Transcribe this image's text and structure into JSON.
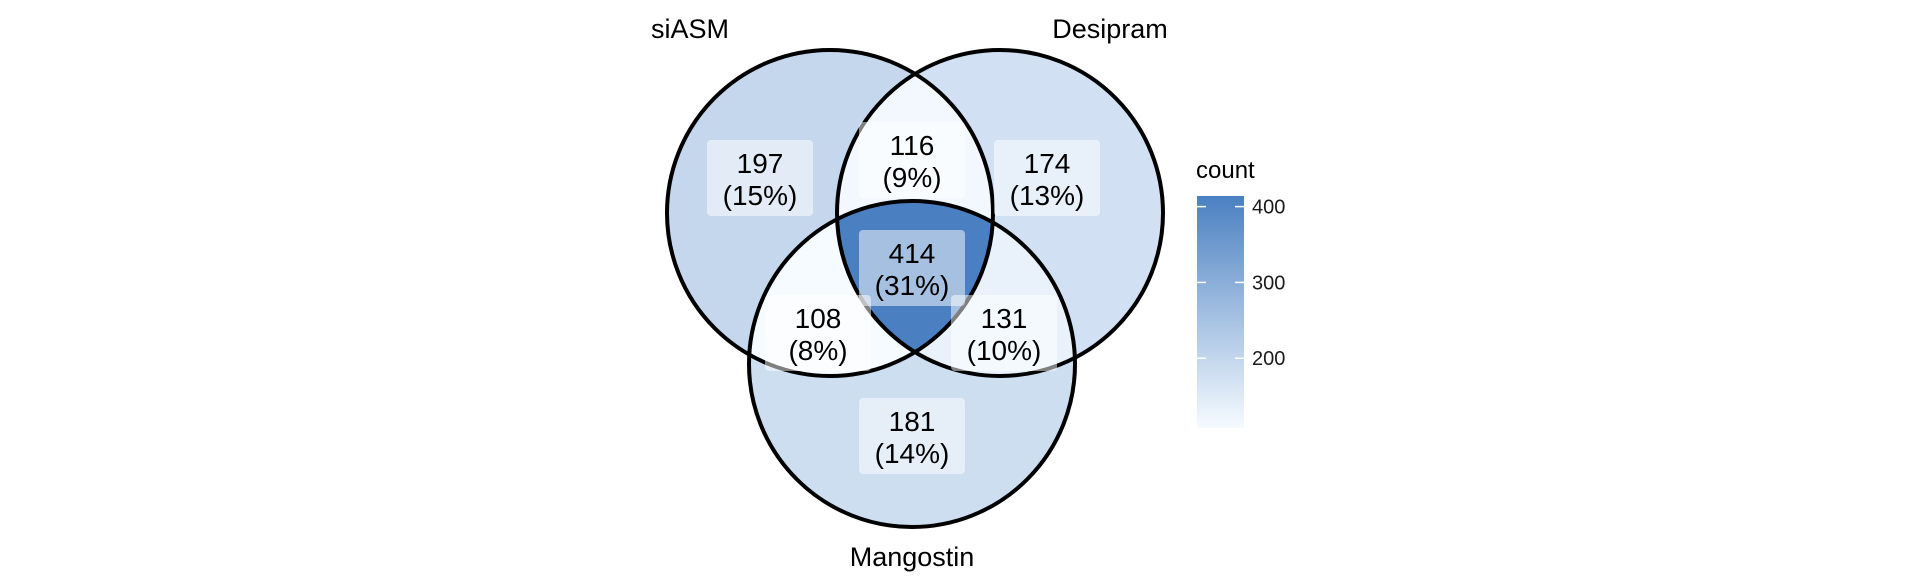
{
  "chart_data": {
    "type": "venn",
    "sets": [
      "siASM",
      "Desipram",
      "Mangostin"
    ],
    "regions": [
      {
        "sets": [
          "siASM"
        ],
        "count": 197,
        "percent": "(15%)"
      },
      {
        "sets": [
          "Desipram"
        ],
        "count": 174,
        "percent": "(13%)"
      },
      {
        "sets": [
          "Mangostin"
        ],
        "count": 181,
        "percent": "(14%)"
      },
      {
        "sets": [
          "siASM",
          "Desipram"
        ],
        "count": 116,
        "percent": "(9%)"
      },
      {
        "sets": [
          "siASM",
          "Mangostin"
        ],
        "count": 108,
        "percent": "(8%)"
      },
      {
        "sets": [
          "Desipram",
          "Mangostin"
        ],
        "count": 131,
        "percent": "(10%)"
      },
      {
        "sets": [
          "siASM",
          "Desipram",
          "Mangostin"
        ],
        "count": 414,
        "percent": "(31%)"
      }
    ],
    "legend": {
      "title": "count",
      "ticks": [
        200,
        300,
        400
      ],
      "range": [
        108,
        414
      ],
      "low_color": "#f6fbff",
      "high_color": "#4a80c1",
      "position": "right"
    }
  }
}
